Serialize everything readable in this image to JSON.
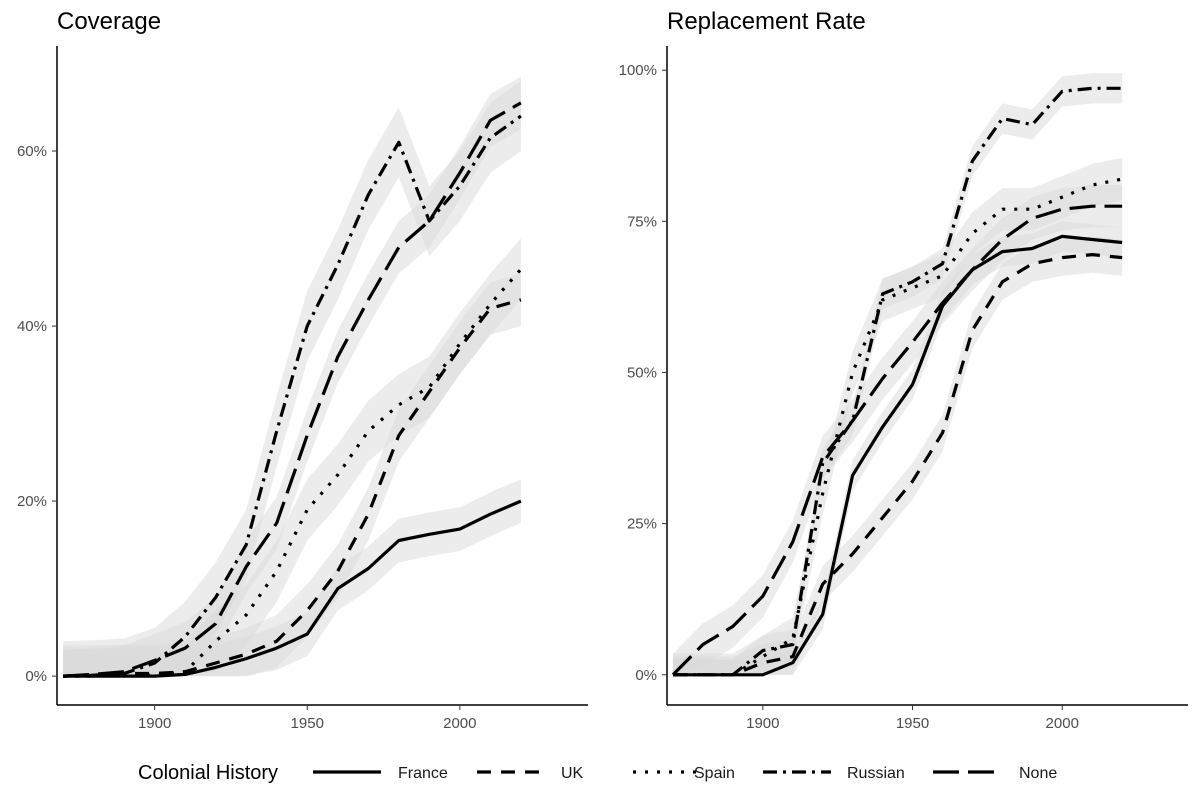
{
  "chart_data": [
    {
      "type": "line",
      "title": "Coverage",
      "xlabel": "",
      "ylabel": "",
      "xlim": [
        1868,
        2042
      ],
      "ylim": [
        -3.3,
        72
      ],
      "x_ticks": [
        1900,
        1950,
        2000
      ],
      "x_tick_labels": [
        "1900",
        "1950",
        "2000"
      ],
      "y_ticks": [
        0,
        20,
        40,
        60
      ],
      "y_tick_labels": [
        "0%",
        "20%",
        "40%",
        "60%"
      ],
      "grid": false,
      "x": [
        1870,
        1880,
        1890,
        1900,
        1910,
        1920,
        1930,
        1940,
        1950,
        1960,
        1970,
        1980,
        1990,
        2000,
        2010,
        2020
      ],
      "series": [
        {
          "name": "France",
          "dash": "solid",
          "values": [
            0,
            0,
            0,
            0,
            0.2,
            1,
            2,
            3.2,
            4.8,
            10,
            12.3,
            15.5,
            16.2,
            16.8,
            18.5,
            20
          ],
          "band": 2.5
        },
        {
          "name": "UK",
          "dash": "dashed",
          "values": [
            0,
            0.1,
            0.3,
            0.3,
            0.5,
            1.5,
            2.5,
            4,
            7.5,
            12,
            18.5,
            27.5,
            32.5,
            37.5,
            42,
            43
          ],
          "band": 3
        },
        {
          "name": "Spain",
          "dash": "dotted",
          "values": [
            0,
            0,
            0.1,
            0.1,
            0.5,
            4,
            7,
            12,
            19,
            23,
            28,
            31,
            33,
            38,
            42.5,
            46.5
          ],
          "band": 3.5
        },
        {
          "name": "Russian",
          "dash": "dotdash",
          "values": [
            0,
            0.1,
            0.3,
            1.5,
            4.5,
            9,
            15,
            28,
            40,
            47,
            55,
            61,
            52,
            56,
            61.5,
            64
          ],
          "band": 4
        },
        {
          "name": "None",
          "dash": "longdash",
          "values": [
            0,
            0.2,
            0.5,
            1.8,
            3.2,
            6,
            12.5,
            17.5,
            27.5,
            36.5,
            43,
            49,
            52,
            57.5,
            63.5,
            65.5
          ],
          "band": 3
        }
      ]
    },
    {
      "type": "line",
      "title": "Replacement Rate",
      "xlabel": "",
      "ylabel": "",
      "xlim": [
        1868,
        2042
      ],
      "ylim": [
        -5,
        104
      ],
      "x_ticks": [
        1900,
        1950,
        2000
      ],
      "x_tick_labels": [
        "1900",
        "1950",
        "2000"
      ],
      "y_ticks": [
        0,
        25,
        50,
        75,
        100
      ],
      "y_tick_labels": [
        "0%",
        "25%",
        "50%",
        "75%",
        "100%"
      ],
      "grid": false,
      "x": [
        1870,
        1880,
        1890,
        1900,
        1910,
        1920,
        1930,
        1940,
        1950,
        1960,
        1970,
        1980,
        1990,
        2000,
        2010,
        2020
      ],
      "series": [
        {
          "name": "France",
          "dash": "solid",
          "values": [
            0,
            0,
            0,
            0,
            2,
            10,
            33,
            41,
            48,
            61,
            67,
            70,
            70.5,
            72.5,
            72,
            71.5
          ],
          "band": 2.5
        },
        {
          "name": "UK",
          "dash": "dashed",
          "values": [
            0,
            0,
            0,
            2,
            3,
            15,
            20,
            26,
            32,
            40,
            57,
            65,
            68,
            69,
            69.5,
            69
          ],
          "band": 3
        },
        {
          "name": "Spain",
          "dash": "dotted",
          "values": [
            0,
            0,
            0,
            3,
            6,
            30,
            50,
            62,
            64,
            66,
            73,
            77,
            77,
            79,
            81,
            82
          ],
          "band": 3.5
        },
        {
          "name": "Russian",
          "dash": "dotdash",
          "values": [
            0,
            0,
            0,
            4,
            5,
            35,
            42,
            63,
            65,
            68,
            85,
            92,
            91,
            96.5,
            97,
            97
          ],
          "band": 2.5
        },
        {
          "name": "None",
          "dash": "longdash",
          "values": [
            0,
            5,
            8,
            13,
            22,
            36,
            42,
            49,
            55,
            61.5,
            67,
            72,
            75.5,
            77,
            77.5,
            77.5
          ],
          "band": 3.5
        }
      ]
    }
  ],
  "legend": {
    "title": "Colonial History",
    "position": "bottom",
    "entries": [
      {
        "label": "France",
        "dash": "solid"
      },
      {
        "label": "UK",
        "dash": "dashed"
      },
      {
        "label": "Spain",
        "dash": "dotted"
      },
      {
        "label": "Russian",
        "dash": "dotdash"
      },
      {
        "label": "None",
        "dash": "longdash"
      }
    ]
  },
  "colors": {
    "line": "#000000",
    "band": "#d9d9d9",
    "axis": "#000000",
    "tick_text": "#4d4d4d",
    "background": "#ffffff"
  }
}
